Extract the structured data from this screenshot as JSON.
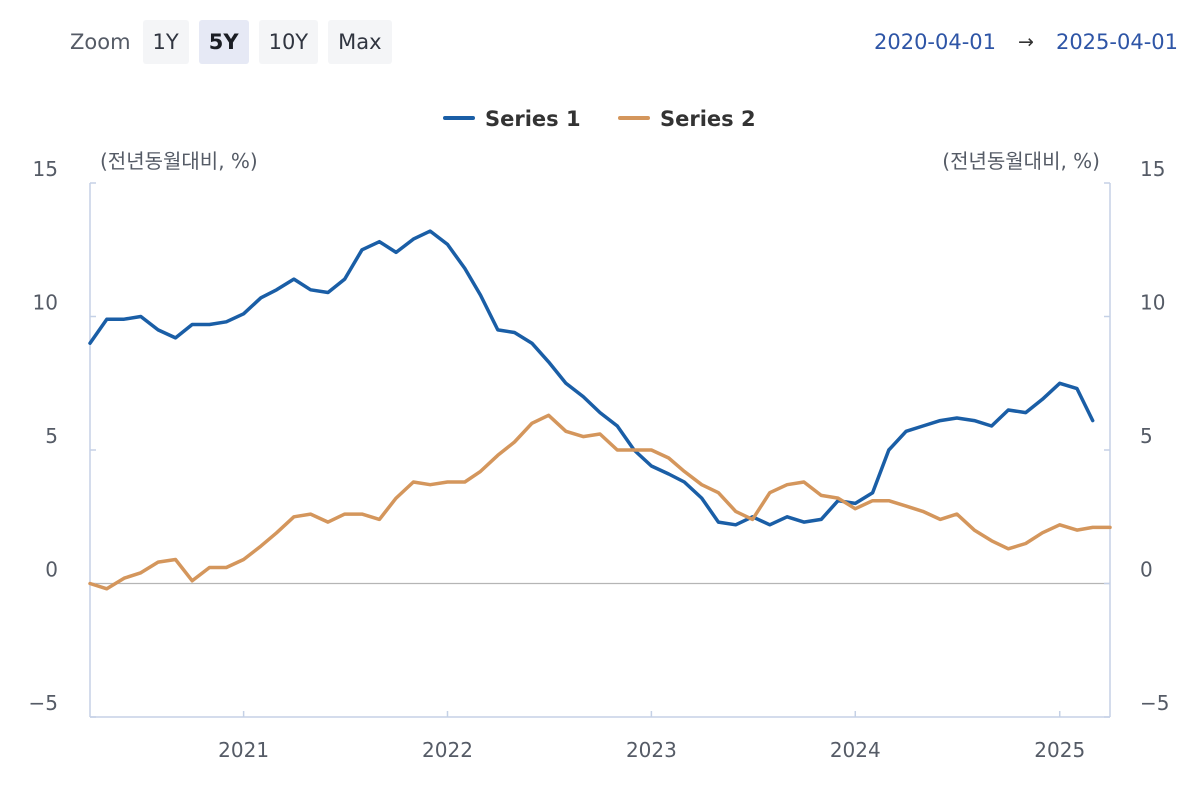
{
  "toolbar": {
    "zoom_label": "Zoom",
    "buttons": [
      "1Y",
      "5Y",
      "10Y",
      "Max"
    ],
    "active": "5Y"
  },
  "range": {
    "start": "2020-04-01",
    "arrow": "→",
    "end": "2025-04-01"
  },
  "colors": {
    "series1": "#1a5ea6",
    "series2": "#d4965c",
    "axis": "#c5d1e6",
    "zero_line": "#b5b5b5"
  },
  "chart_data": {
    "type": "line",
    "unit_left": "(전년동월대비, %)",
    "unit_right": "(전년동월대비, %)",
    "ylim": [
      -5,
      15
    ],
    "yticks": [
      "−5",
      "0",
      "5",
      "10",
      "15"
    ],
    "ytick_values": [
      -5,
      0,
      5,
      10,
      15
    ],
    "xticks": [
      "2021",
      "2022",
      "2023",
      "2024",
      "2025"
    ],
    "xtick_dates": [
      "2021-01-01",
      "2022-01-01",
      "2023-01-01",
      "2024-01-01",
      "2025-01-01"
    ],
    "xlim": [
      "2020-04-01",
      "2025-04-01"
    ],
    "legend_position": "top-center",
    "grid": false,
    "x": [
      "2020-04",
      "2020-05",
      "2020-06",
      "2020-07",
      "2020-08",
      "2020-09",
      "2020-10",
      "2020-11",
      "2020-12",
      "2021-01",
      "2021-02",
      "2021-03",
      "2021-04",
      "2021-05",
      "2021-06",
      "2021-07",
      "2021-08",
      "2021-09",
      "2021-10",
      "2021-11",
      "2021-12",
      "2022-01",
      "2022-02",
      "2022-03",
      "2022-04",
      "2022-05",
      "2022-06",
      "2022-07",
      "2022-08",
      "2022-09",
      "2022-10",
      "2022-11",
      "2022-12",
      "2023-01",
      "2023-02",
      "2023-03",
      "2023-04",
      "2023-05",
      "2023-06",
      "2023-07",
      "2023-08",
      "2023-09",
      "2023-10",
      "2023-11",
      "2023-12",
      "2024-01",
      "2024-02",
      "2024-03",
      "2024-04",
      "2024-05",
      "2024-06",
      "2024-07",
      "2024-08",
      "2024-09",
      "2024-10",
      "2024-11",
      "2024-12",
      "2025-01",
      "2025-02",
      "2025-03",
      "2025-04"
    ],
    "series": [
      {
        "name": "Series 1",
        "values": [
          9.0,
          9.9,
          9.9,
          10.0,
          9.5,
          9.2,
          9.7,
          9.7,
          9.8,
          10.1,
          10.7,
          11.0,
          11.4,
          11.0,
          10.9,
          11.4,
          12.5,
          12.8,
          12.4,
          12.9,
          13.2,
          12.7,
          11.8,
          10.8,
          9.5,
          9.4,
          9.0,
          8.3,
          7.5,
          7.0,
          6.4,
          5.9,
          5.0,
          4.4,
          4.1,
          3.8,
          3.2,
          2.3,
          2.2,
          2.5,
          2.2,
          2.5,
          2.3,
          2.4,
          3.1,
          3.0,
          3.4,
          5.0,
          5.7,
          5.9,
          6.1,
          6.2,
          6.1,
          5.9,
          6.5,
          6.4,
          6.9,
          7.5,
          7.3,
          6.1,
          null
        ]
      },
      {
        "name": "Series 2",
        "values": [
          0.0,
          -0.2,
          0.2,
          0.4,
          0.8,
          0.9,
          0.1,
          0.6,
          0.6,
          0.9,
          1.4,
          1.9,
          2.5,
          2.6,
          2.3,
          2.6,
          2.6,
          2.4,
          3.2,
          3.8,
          3.7,
          3.8,
          3.8,
          4.2,
          4.8,
          5.3,
          6.0,
          6.3,
          5.7,
          5.5,
          5.6,
          5.0,
          5.0,
          5.0,
          4.7,
          4.2,
          3.7,
          3.4,
          2.7,
          2.4,
          3.4,
          3.7,
          3.8,
          3.3,
          3.2,
          2.8,
          3.1,
          3.1,
          2.9,
          2.7,
          2.4,
          2.6,
          2.0,
          1.6,
          1.3,
          1.5,
          1.9,
          2.2,
          2.0,
          2.1,
          2.1
        ]
      }
    ]
  }
}
